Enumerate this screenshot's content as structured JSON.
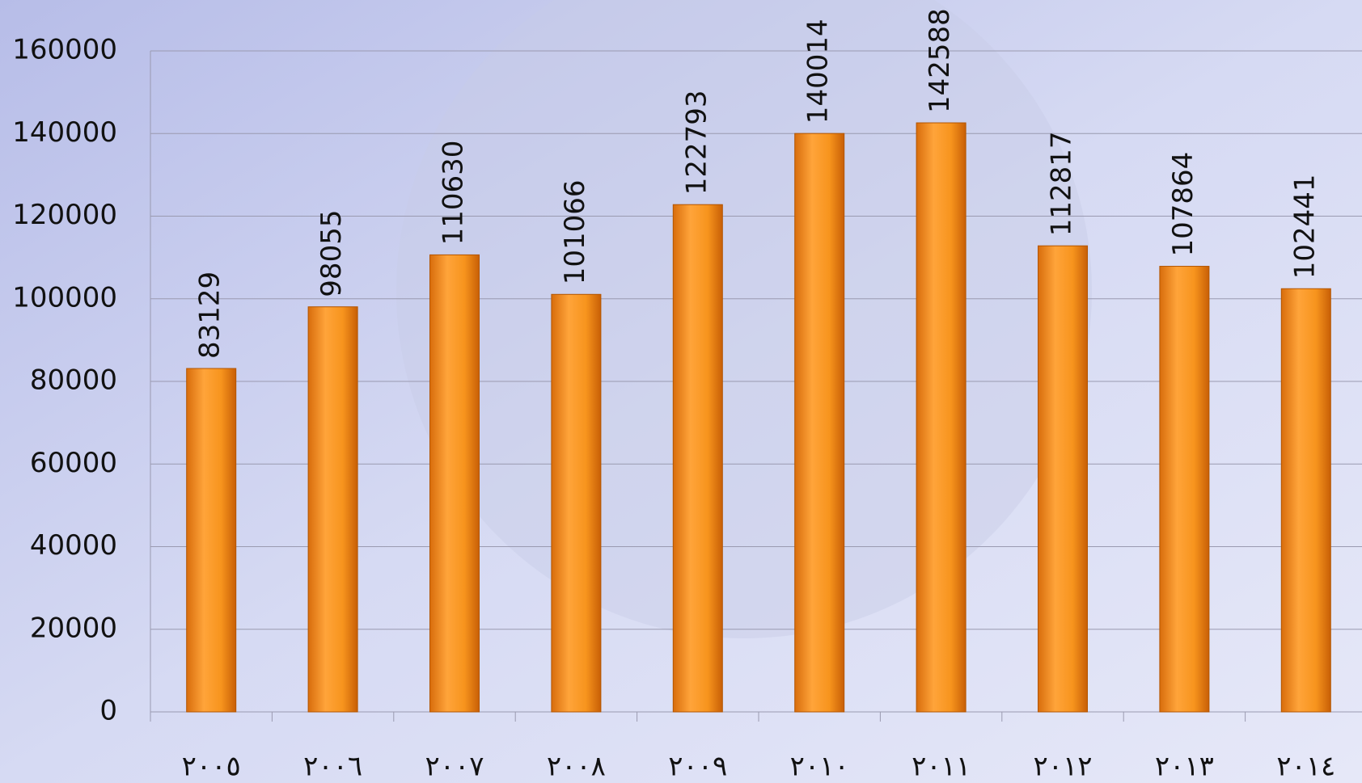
{
  "chart_data": {
    "type": "bar",
    "categories": [
      "٢٠٠٥",
      "٢٠٠٦",
      "٢٠٠٧",
      "٢٠٠٨",
      "٢٠٠٩",
      "٢٠١٠",
      "٢٠١١",
      "٢٠١٢",
      "٢٠١٣",
      "٢٠١٤"
    ],
    "values": [
      83129,
      98055,
      110630,
      101066,
      122793,
      140014,
      142588,
      112817,
      107864,
      102441
    ],
    "color": "#f7941d",
    "ylim": [
      0,
      160000
    ],
    "yticks": [
      0,
      20000,
      40000,
      60000,
      80000,
      100000,
      120000,
      140000,
      160000
    ],
    "grid": true
  }
}
